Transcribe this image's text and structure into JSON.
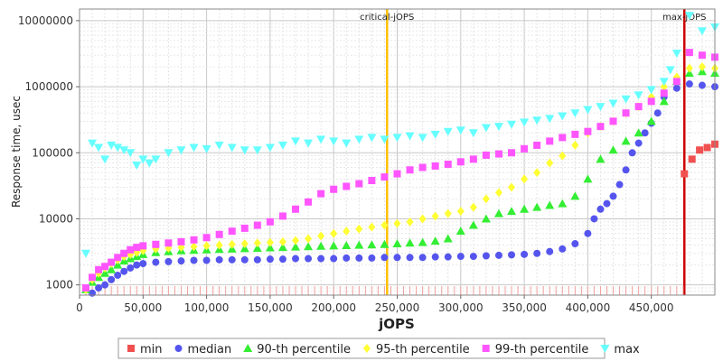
{
  "chart_data": {
    "type": "scatter",
    "xlabel": "jOPS",
    "ylabel": "Response time, usec",
    "xlim": [
      0,
      500000
    ],
    "ylim": [
      700,
      15000000
    ],
    "yscale": "log",
    "grid": true,
    "legend_position": "bottom",
    "x_ticks": [
      "0",
      "50,000",
      "100,000",
      "150,000",
      "200,000",
      "250,000",
      "300,000",
      "350,000",
      "400,000",
      "450,000"
    ],
    "y_ticks": [
      "1000",
      "10000",
      "100000",
      "1000000",
      "10000000"
    ],
    "vertical_markers": [
      {
        "label": "critical-jOPS",
        "x": 242000,
        "color": "#ffc000"
      },
      {
        "label": "max-jOPS",
        "x": 476000,
        "color": "#cc0000"
      }
    ],
    "series": [
      {
        "name": "min",
        "color": "#f05050",
        "marker": "square",
        "points": [
          [
            476000,
            48000
          ],
          [
            482000,
            80000
          ],
          [
            488000,
            110000
          ],
          [
            494000,
            120000
          ],
          [
            500000,
            135000
          ]
        ]
      },
      {
        "name": "median",
        "color": "#5555ee",
        "marker": "circle",
        "points": [
          [
            5000,
            850
          ],
          [
            10000,
            750
          ],
          [
            15000,
            900
          ],
          [
            20000,
            1000
          ],
          [
            25000,
            1200
          ],
          [
            30000,
            1400
          ],
          [
            35000,
            1600
          ],
          [
            40000,
            1800
          ],
          [
            45000,
            2000
          ],
          [
            50000,
            2100
          ],
          [
            60000,
            2200
          ],
          [
            70000,
            2250
          ],
          [
            80000,
            2300
          ],
          [
            90000,
            2350
          ],
          [
            100000,
            2350
          ],
          [
            110000,
            2400
          ],
          [
            120000,
            2400
          ],
          [
            130000,
            2400
          ],
          [
            140000,
            2400
          ],
          [
            150000,
            2450
          ],
          [
            160000,
            2450
          ],
          [
            170000,
            2500
          ],
          [
            180000,
            2500
          ],
          [
            190000,
            2500
          ],
          [
            200000,
            2500
          ],
          [
            210000,
            2550
          ],
          [
            220000,
            2550
          ],
          [
            230000,
            2550
          ],
          [
            240000,
            2600
          ],
          [
            250000,
            2600
          ],
          [
            260000,
            2600
          ],
          [
            270000,
            2600
          ],
          [
            280000,
            2650
          ],
          [
            290000,
            2650
          ],
          [
            300000,
            2700
          ],
          [
            310000,
            2700
          ],
          [
            320000,
            2750
          ],
          [
            330000,
            2800
          ],
          [
            340000,
            2850
          ],
          [
            350000,
            2900
          ],
          [
            360000,
            3000
          ],
          [
            370000,
            3200
          ],
          [
            380000,
            3500
          ],
          [
            390000,
            4200
          ],
          [
            400000,
            6000
          ],
          [
            405000,
            10000
          ],
          [
            410000,
            14000
          ],
          [
            415000,
            17000
          ],
          [
            420000,
            22000
          ],
          [
            425000,
            33000
          ],
          [
            430000,
            55000
          ],
          [
            435000,
            100000
          ],
          [
            440000,
            140000
          ],
          [
            445000,
            200000
          ],
          [
            450000,
            280000
          ],
          [
            455000,
            400000
          ],
          [
            460000,
            700000
          ],
          [
            470000,
            950000
          ],
          [
            480000,
            1100000
          ],
          [
            490000,
            1050000
          ],
          [
            500000,
            1000000
          ]
        ]
      },
      {
        "name": "90-th percentile",
        "color": "#33ee33",
        "marker": "triangle",
        "points": [
          [
            5000,
            850
          ],
          [
            10000,
            1100
          ],
          [
            15000,
            1300
          ],
          [
            20000,
            1500
          ],
          [
            25000,
            1700
          ],
          [
            30000,
            2000
          ],
          [
            35000,
            2300
          ],
          [
            40000,
            2500
          ],
          [
            45000,
            2700
          ],
          [
            50000,
            2900
          ],
          [
            60000,
            3100
          ],
          [
            70000,
            3200
          ],
          [
            80000,
            3300
          ],
          [
            90000,
            3350
          ],
          [
            100000,
            3400
          ],
          [
            110000,
            3450
          ],
          [
            120000,
            3500
          ],
          [
            130000,
            3550
          ],
          [
            140000,
            3600
          ],
          [
            150000,
            3650
          ],
          [
            160000,
            3700
          ],
          [
            170000,
            3750
          ],
          [
            180000,
            3800
          ],
          [
            190000,
            3850
          ],
          [
            200000,
            3900
          ],
          [
            210000,
            3950
          ],
          [
            220000,
            4000
          ],
          [
            230000,
            4050
          ],
          [
            240000,
            4100
          ],
          [
            250000,
            4200
          ],
          [
            260000,
            4300
          ],
          [
            270000,
            4400
          ],
          [
            280000,
            4600
          ],
          [
            290000,
            5000
          ],
          [
            300000,
            6500
          ],
          [
            310000,
            8000
          ],
          [
            320000,
            10000
          ],
          [
            330000,
            12000
          ],
          [
            340000,
            13000
          ],
          [
            350000,
            14000
          ],
          [
            360000,
            15000
          ],
          [
            370000,
            16000
          ],
          [
            380000,
            17000
          ],
          [
            390000,
            22000
          ],
          [
            400000,
            40000
          ],
          [
            410000,
            80000
          ],
          [
            420000,
            110000
          ],
          [
            430000,
            150000
          ],
          [
            440000,
            200000
          ],
          [
            450000,
            300000
          ],
          [
            460000,
            600000
          ],
          [
            470000,
            1200000
          ],
          [
            480000,
            1600000
          ],
          [
            490000,
            1700000
          ],
          [
            500000,
            1600000
          ]
        ]
      },
      {
        "name": "95-th percentile",
        "color": "#ffff33",
        "marker": "diamond",
        "points": [
          [
            5000,
            850
          ],
          [
            10000,
            1200
          ],
          [
            15000,
            1500
          ],
          [
            20000,
            1800
          ],
          [
            25000,
            2100
          ],
          [
            30000,
            2400
          ],
          [
            35000,
            2700
          ],
          [
            40000,
            2900
          ],
          [
            45000,
            3100
          ],
          [
            50000,
            3300
          ],
          [
            60000,
            3500
          ],
          [
            70000,
            3600
          ],
          [
            80000,
            3700
          ],
          [
            90000,
            3800
          ],
          [
            100000,
            3900
          ],
          [
            110000,
            4000
          ],
          [
            120000,
            4100
          ],
          [
            130000,
            4200
          ],
          [
            140000,
            4300
          ],
          [
            150000,
            4400
          ],
          [
            160000,
            4500
          ],
          [
            170000,
            4700
          ],
          [
            180000,
            5000
          ],
          [
            190000,
            5500
          ],
          [
            200000,
            6000
          ],
          [
            210000,
            6500
          ],
          [
            220000,
            7000
          ],
          [
            230000,
            7500
          ],
          [
            240000,
            8000
          ],
          [
            250000,
            8500
          ],
          [
            260000,
            9000
          ],
          [
            270000,
            10000
          ],
          [
            280000,
            11000
          ],
          [
            290000,
            12000
          ],
          [
            300000,
            13000
          ],
          [
            310000,
            15000
          ],
          [
            320000,
            20000
          ],
          [
            330000,
            25000
          ],
          [
            340000,
            30000
          ],
          [
            350000,
            40000
          ],
          [
            360000,
            50000
          ],
          [
            370000,
            70000
          ],
          [
            380000,
            90000
          ],
          [
            390000,
            130000
          ],
          [
            400000,
            200000
          ],
          [
            410000,
            250000
          ],
          [
            420000,
            300000
          ],
          [
            430000,
            400000
          ],
          [
            440000,
            500000
          ],
          [
            450000,
            700000
          ],
          [
            460000,
            1000000
          ],
          [
            470000,
            1400000
          ],
          [
            480000,
            1900000
          ],
          [
            490000,
            2000000
          ],
          [
            500000,
            1900000
          ]
        ]
      },
      {
        "name": "99-th percentile",
        "color": "#ff55ff",
        "marker": "square",
        "points": [
          [
            5000,
            900
          ],
          [
            10000,
            1300
          ],
          [
            15000,
            1700
          ],
          [
            20000,
            1900
          ],
          [
            25000,
            2200
          ],
          [
            30000,
            2600
          ],
          [
            35000,
            3000
          ],
          [
            40000,
            3400
          ],
          [
            45000,
            3700
          ],
          [
            50000,
            3900
          ],
          [
            60000,
            4100
          ],
          [
            70000,
            4300
          ],
          [
            80000,
            4500
          ],
          [
            90000,
            4800
          ],
          [
            100000,
            5200
          ],
          [
            110000,
            5800
          ],
          [
            120000,
            6500
          ],
          [
            130000,
            7200
          ],
          [
            140000,
            8000
          ],
          [
            150000,
            9000
          ],
          [
            160000,
            11000
          ],
          [
            170000,
            14000
          ],
          [
            180000,
            18000
          ],
          [
            190000,
            24000
          ],
          [
            200000,
            28000
          ],
          [
            210000,
            31000
          ],
          [
            220000,
            34000
          ],
          [
            230000,
            38000
          ],
          [
            240000,
            43000
          ],
          [
            250000,
            48000
          ],
          [
            260000,
            55000
          ],
          [
            270000,
            60000
          ],
          [
            280000,
            63000
          ],
          [
            290000,
            67000
          ],
          [
            300000,
            73000
          ],
          [
            310000,
            80000
          ],
          [
            320000,
            92000
          ],
          [
            330000,
            96000
          ],
          [
            340000,
            100000
          ],
          [
            350000,
            115000
          ],
          [
            360000,
            130000
          ],
          [
            370000,
            150000
          ],
          [
            380000,
            170000
          ],
          [
            390000,
            190000
          ],
          [
            400000,
            210000
          ],
          [
            410000,
            250000
          ],
          [
            420000,
            300000
          ],
          [
            430000,
            400000
          ],
          [
            440000,
            500000
          ],
          [
            450000,
            600000
          ],
          [
            460000,
            800000
          ],
          [
            470000,
            1200000
          ],
          [
            480000,
            3300000
          ],
          [
            490000,
            3000000
          ],
          [
            500000,
            2800000
          ]
        ]
      },
      {
        "name": "max",
        "color": "#66ffff",
        "marker": "triangle-down",
        "points": [
          [
            5000,
            3000
          ],
          [
            10000,
            140000
          ],
          [
            15000,
            120000
          ],
          [
            20000,
            80000
          ],
          [
            25000,
            130000
          ],
          [
            30000,
            120000
          ],
          [
            35000,
            110000
          ],
          [
            40000,
            100000
          ],
          [
            45000,
            65000
          ],
          [
            50000,
            80000
          ],
          [
            55000,
            70000
          ],
          [
            60000,
            80000
          ],
          [
            70000,
            100000
          ],
          [
            80000,
            110000
          ],
          [
            90000,
            120000
          ],
          [
            100000,
            115000
          ],
          [
            110000,
            130000
          ],
          [
            120000,
            120000
          ],
          [
            130000,
            110000
          ],
          [
            140000,
            110000
          ],
          [
            150000,
            120000
          ],
          [
            160000,
            130000
          ],
          [
            170000,
            150000
          ],
          [
            180000,
            140000
          ],
          [
            190000,
            160000
          ],
          [
            200000,
            150000
          ],
          [
            210000,
            140000
          ],
          [
            220000,
            160000
          ],
          [
            230000,
            170000
          ],
          [
            240000,
            160000
          ],
          [
            250000,
            170000
          ],
          [
            260000,
            180000
          ],
          [
            270000,
            170000
          ],
          [
            280000,
            190000
          ],
          [
            290000,
            210000
          ],
          [
            300000,
            220000
          ],
          [
            310000,
            200000
          ],
          [
            320000,
            240000
          ],
          [
            330000,
            250000
          ],
          [
            340000,
            270000
          ],
          [
            350000,
            290000
          ],
          [
            360000,
            310000
          ],
          [
            370000,
            330000
          ],
          [
            380000,
            360000
          ],
          [
            390000,
            400000
          ],
          [
            400000,
            450000
          ],
          [
            410000,
            500000
          ],
          [
            420000,
            560000
          ],
          [
            430000,
            650000
          ],
          [
            440000,
            750000
          ],
          [
            450000,
            900000
          ],
          [
            460000,
            1200000
          ],
          [
            465000,
            1800000
          ],
          [
            470000,
            3200000
          ],
          [
            480000,
            12000000
          ],
          [
            490000,
            7000000
          ],
          [
            500000,
            8000000
          ]
        ]
      }
    ]
  }
}
